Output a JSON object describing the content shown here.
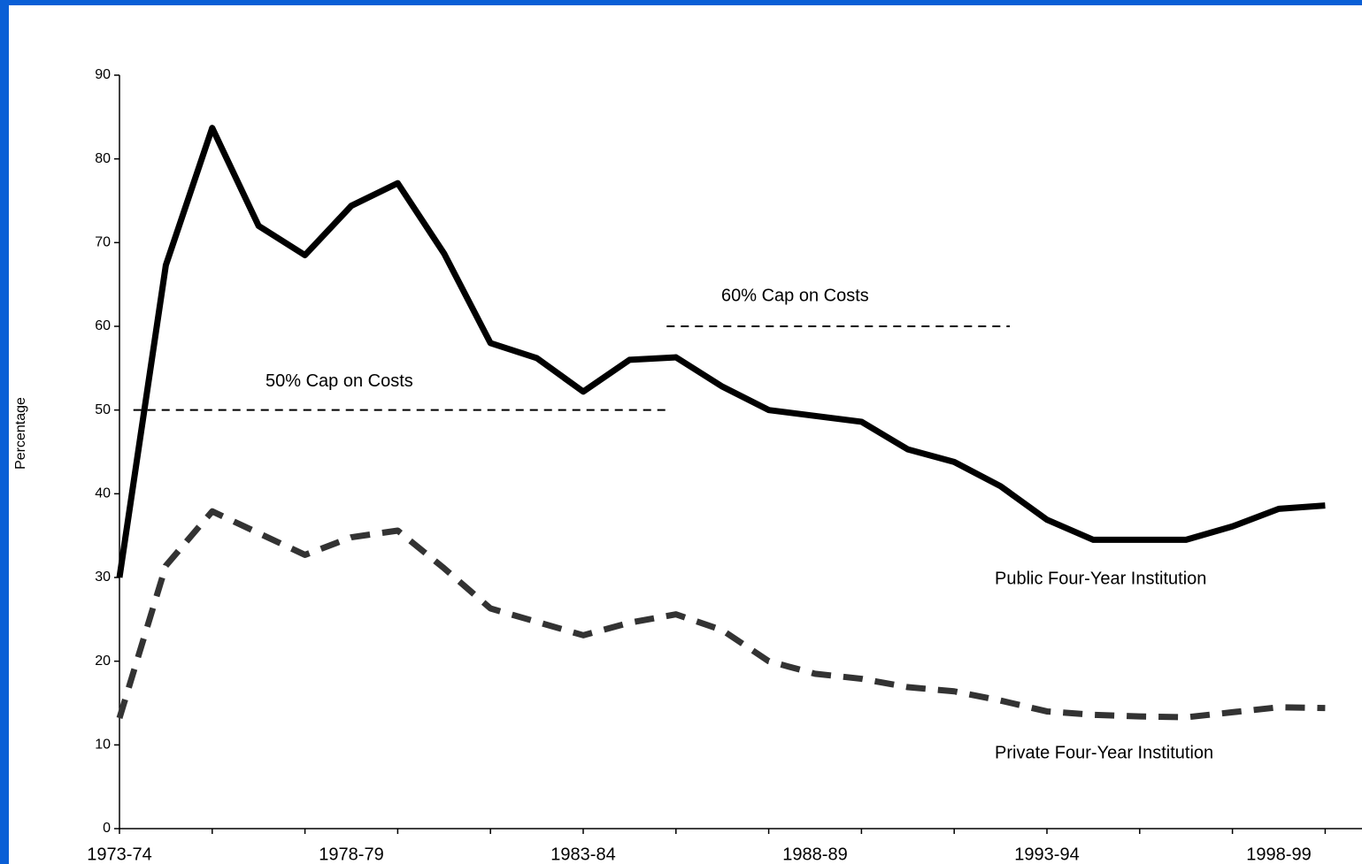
{
  "chart_data": {
    "type": "line",
    "ylabel": "Percentage",
    "categories": [
      "1973-74",
      null,
      null,
      null,
      null,
      "1978-79",
      null,
      null,
      null,
      null,
      "1983-84",
      null,
      null,
      null,
      null,
      "1988-89",
      null,
      null,
      null,
      null,
      "1993-94",
      null,
      null,
      null,
      null,
      "1998-99",
      null
    ],
    "series": [
      {
        "name": "Public Four-Year Institution",
        "color": "#000000",
        "dash": false,
        "values": [
          30,
          67.3,
          83.7,
          72,
          68.5,
          74.4,
          77.1,
          68.7,
          58,
          56.2,
          52.2,
          56,
          56.3,
          52.8,
          50,
          49.3,
          48.6,
          45.3,
          43.8,
          40.9,
          36.9,
          34.5,
          34.5,
          34.5,
          36.1,
          38.2,
          38.6
        ]
      },
      {
        "name": "Private Four-Year Institution",
        "color": "#333333",
        "dash": true,
        "values": [
          13.2,
          31.4,
          37.9,
          35.3,
          32.7,
          34.8,
          35.6,
          31.1,
          26.3,
          24.7,
          23.1,
          24.6,
          25.6,
          23.7,
          20,
          18.5,
          17.9,
          16.9,
          16.4,
          15.3,
          14,
          13.6,
          13.4,
          13.3,
          13.9,
          14.5,
          14.4
        ]
      }
    ],
    "annotations": [
      {
        "text": "50% Cap on Costs",
        "value": 50
      },
      {
        "text": "60% Cap on Costs",
        "value": 60
      }
    ],
    "ylim": [
      0,
      90
    ],
    "yticks": [
      0,
      10,
      20,
      30,
      40,
      50,
      60,
      70,
      80,
      90
    ]
  }
}
